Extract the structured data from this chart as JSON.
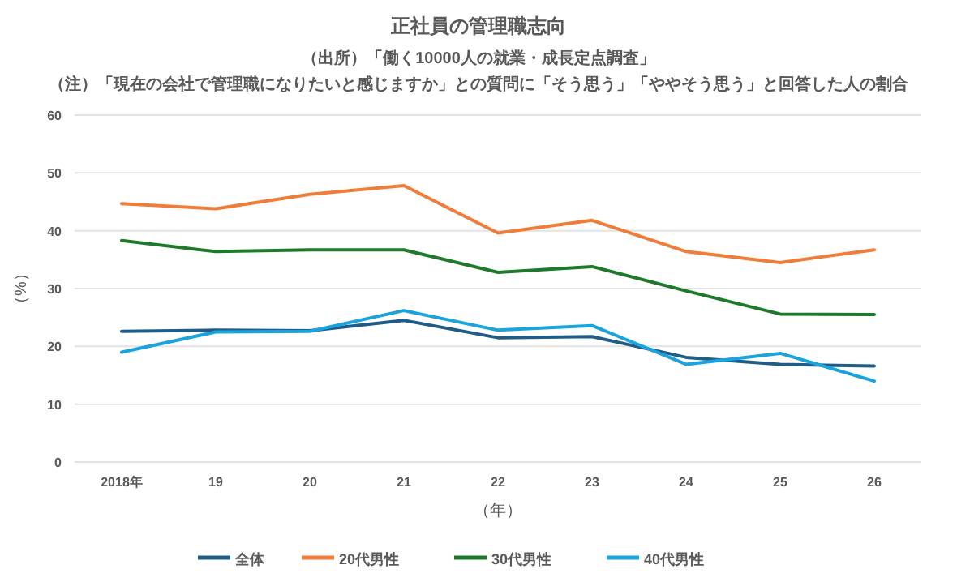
{
  "chart_data": {
    "type": "line",
    "title": "正社員の管理職志向",
    "subtitle": "（出所）「働く10000人の就業・成長定点調査」",
    "annotations": [
      "（注）「現在の会社で管理職になりたいと感じますか」との質問に「そう思う」「ややそう思う」と回答した人の割合"
    ],
    "xlabel": "（年）",
    "ylabel": "（%）",
    "categories": [
      "2018年",
      "19",
      "20",
      "21",
      "22",
      "23",
      "24",
      "25",
      "26"
    ],
    "ylim": [
      0,
      60
    ],
    "yticks": [
      0,
      10,
      20,
      30,
      40,
      50,
      60
    ],
    "grid": "y",
    "legend": "bottom",
    "marker": "none",
    "line_style": "solid",
    "series": [
      {
        "name": "全体",
        "color": "#1f5c87",
        "values": [
          22.6,
          22.8,
          22.7,
          24.5,
          21.5,
          21.7,
          18.1,
          16.9,
          16.6
        ]
      },
      {
        "name": "20代男性",
        "color": "#f07c3a",
        "values": [
          44.7,
          43.8,
          46.3,
          47.8,
          39.6,
          41.8,
          36.4,
          34.5,
          36.7
        ]
      },
      {
        "name": "30代男性",
        "color": "#1e7a2a",
        "values": [
          38.3,
          36.4,
          36.7,
          36.7,
          32.8,
          33.8,
          29.6,
          25.6,
          25.5
        ]
      },
      {
        "name": "40代男性",
        "color": "#1aa3dc",
        "values": [
          19.0,
          22.5,
          22.6,
          26.2,
          22.8,
          23.6,
          16.9,
          18.8,
          14.0
        ]
      }
    ]
  }
}
